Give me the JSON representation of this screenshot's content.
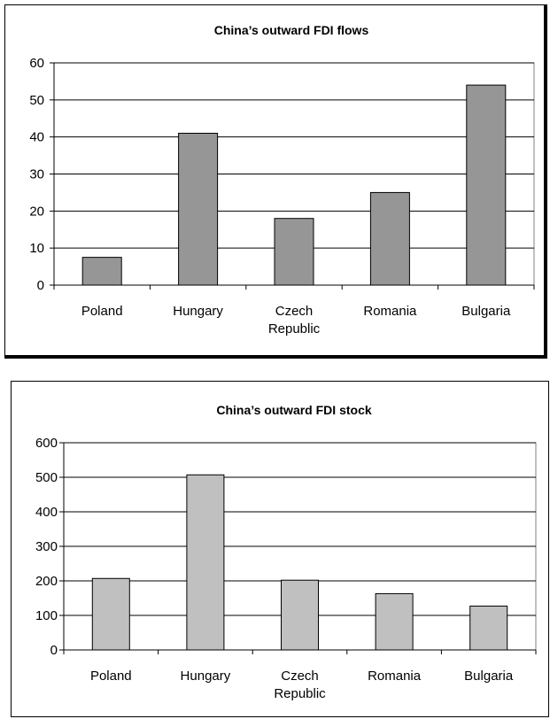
{
  "chart_data": [
    {
      "type": "bar",
      "title": "China’s outward FDI flows",
      "categories": [
        [
          "Poland"
        ],
        [
          "Hungary"
        ],
        [
          "Czech",
          "Republic"
        ],
        [
          "Romania"
        ],
        [
          "Bulgaria"
        ]
      ],
      "values": [
        7.5,
        41,
        18,
        25,
        54
      ],
      "ylim": [
        0,
        60
      ],
      "yticks": [
        0,
        10,
        20,
        30,
        40,
        50,
        60
      ],
      "grid": true,
      "bar_color": "#969696"
    },
    {
      "type": "bar",
      "title": "China’s outward FDI stock",
      "categories": [
        [
          "Poland"
        ],
        [
          "Hungary"
        ],
        [
          "Czech",
          "Republic"
        ],
        [
          "Romania"
        ],
        [
          "Bulgaria"
        ]
      ],
      "values": [
        207,
        507,
        202,
        163,
        127
      ],
      "ylim": [
        0,
        600
      ],
      "yticks": [
        0,
        100,
        200,
        300,
        400,
        500,
        600
      ],
      "grid": true,
      "bar_color": "#c0c0c0"
    }
  ]
}
